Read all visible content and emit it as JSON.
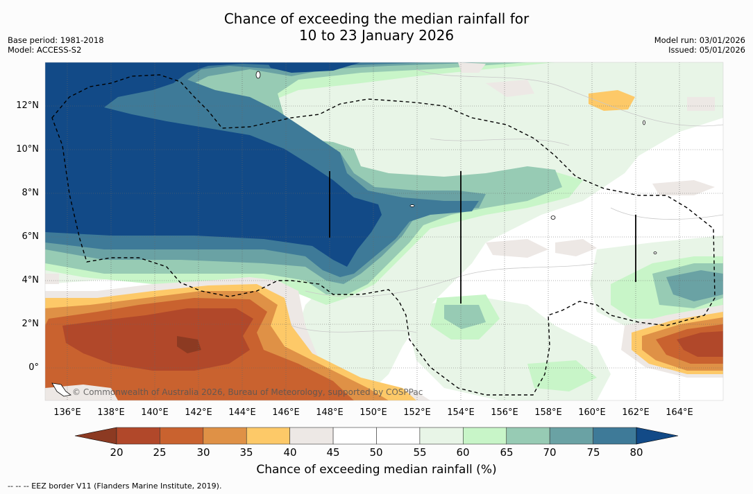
{
  "title": {
    "line1": "Chance of exceeding the median rainfall for",
    "line2": "10 to 23 January 2026"
  },
  "meta_left": {
    "base_period": "Base period: 1981-2018",
    "model": "Model: ACCESS-S2"
  },
  "meta_right": {
    "model_run": "Model run: 03/01/2026",
    "issued": "Issued: 05/01/2026"
  },
  "latitude_labels": [
    "12°N",
    "10°N",
    "8°N",
    "6°N",
    "4°N",
    "2°N",
    "0°"
  ],
  "longitude_labels": [
    "136°E",
    "138°E",
    "140°E",
    "142°E",
    "144°E",
    "146°E",
    "148°E",
    "150°E",
    "152°E",
    "154°E",
    "156°E",
    "158°E",
    "160°E",
    "162°E",
    "164°E"
  ],
  "credit": "© Commonwealth of Australia 2026, Bureau of Meteorology, supported by COSPPac",
  "colorbar": {
    "ticks": [
      "20",
      "25",
      "30",
      "35",
      "40",
      "45",
      "50",
      "55",
      "60",
      "65",
      "70",
      "75",
      "80"
    ],
    "colors": [
      "#b1482a",
      "#c9622f",
      "#df9146",
      "#fdc968",
      "#ede8e5",
      "#ffffff",
      "#ffffff",
      "#e8f5e7",
      "#c8f5c8",
      "#97cbb4",
      "#6aa2a4",
      "#3e7a98"
    ],
    "low_color": "#8c3a22",
    "high_color": "#124a87",
    "title": "Chance of exceeding median rainfall (%)"
  },
  "footnote": "--  --  -- EEZ border V11 (Flanders Marine Institute, 2019)."
}
